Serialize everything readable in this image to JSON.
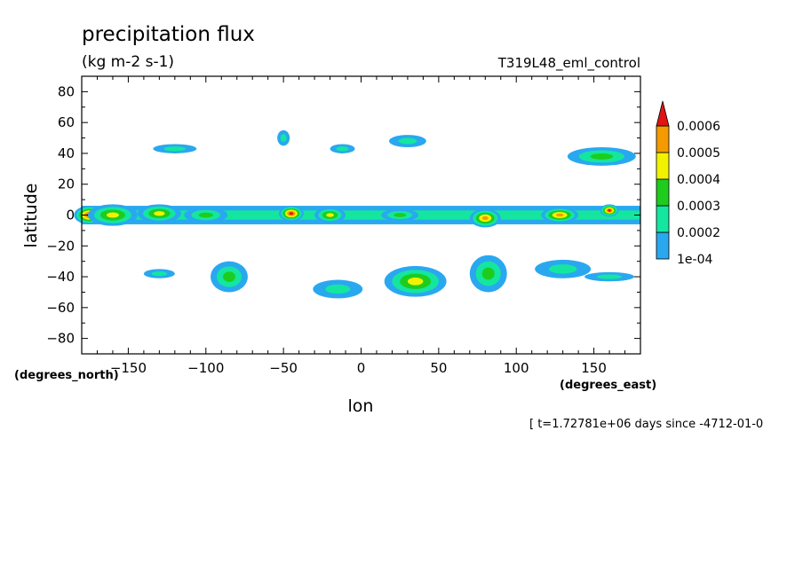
{
  "chart_data": {
    "type": "heatmap",
    "title": "precipitation flux",
    "subtitle": "(kg m-2 s-1)",
    "dataset_label": "T319L48_eml_control",
    "xlabel": "lon",
    "ylabel": "latitude",
    "x_units": "(degrees_east)",
    "y_units": "(degrees_north)",
    "xlim": [
      -180,
      180
    ],
    "ylim": [
      -90,
      90
    ],
    "x_ticks": [
      -150,
      -100,
      -50,
      0,
      50,
      100,
      150
    ],
    "y_ticks": [
      80,
      60,
      40,
      20,
      0,
      -20,
      -40,
      -60,
      -80
    ],
    "time_note": "[ t=1.72781e+06 days since -4712-01-0",
    "colorbar": {
      "labels": [
        "0.0006",
        "0.0005",
        "0.0004",
        "0.0003",
        "0.0002",
        "1e-04"
      ],
      "levels": [
        0.0001,
        0.0002,
        0.0003,
        0.0004,
        0.0005,
        0.0006
      ],
      "colors": [
        "#29a8f0",
        "#14e6a0",
        "#1ecc1e",
        "#f2f200",
        "#f59a00",
        "#e01414"
      ]
    },
    "features": [
      {
        "lon": -175,
        "lat": 0,
        "w": 10,
        "h": 6,
        "level": 5
      },
      {
        "lon": -160,
        "lat": 0,
        "w": 16,
        "h": 7,
        "level": 3
      },
      {
        "lon": -130,
        "lat": 1,
        "w": 14,
        "h": 6,
        "level": 3
      },
      {
        "lon": -100,
        "lat": 0,
        "w": 14,
        "h": 5,
        "level": 2
      },
      {
        "lon": -45,
        "lat": 1,
        "w": 8,
        "h": 5,
        "level": 5
      },
      {
        "lon": -20,
        "lat": 0,
        "w": 10,
        "h": 5,
        "level": 3
      },
      {
        "lon": 25,
        "lat": 0,
        "w": 12,
        "h": 4,
        "level": 2
      },
      {
        "lon": 80,
        "lat": -2,
        "w": 10,
        "h": 6,
        "level": 4
      },
      {
        "lon": 128,
        "lat": 0,
        "w": 12,
        "h": 5,
        "level": 4
      },
      {
        "lon": 160,
        "lat": 3,
        "w": 6,
        "h": 4,
        "level": 5
      },
      {
        "lon": -120,
        "lat": 43,
        "w": 14,
        "h": 3,
        "level": 1
      },
      {
        "lon": -50,
        "lat": 50,
        "w": 4,
        "h": 5,
        "level": 1
      },
      {
        "lon": -12,
        "lat": 43,
        "w": 8,
        "h": 3,
        "level": 1
      },
      {
        "lon": 30,
        "lat": 48,
        "w": 12,
        "h": 4,
        "level": 1
      },
      {
        "lon": 155,
        "lat": 38,
        "w": 22,
        "h": 6,
        "level": 2
      },
      {
        "lon": -85,
        "lat": -40,
        "w": 12,
        "h": 10,
        "level": 2
      },
      {
        "lon": -15,
        "lat": -48,
        "w": 16,
        "h": 6,
        "level": 1
      },
      {
        "lon": 35,
        "lat": -43,
        "w": 20,
        "h": 10,
        "level": 3
      },
      {
        "lon": 82,
        "lat": -38,
        "w": 12,
        "h": 12,
        "level": 2
      },
      {
        "lon": 130,
        "lat": -35,
        "w": 18,
        "h": 6,
        "level": 1
      },
      {
        "lon": -130,
        "lat": -38,
        "w": 10,
        "h": 3,
        "level": 1
      },
      {
        "lon": 160,
        "lat": -40,
        "w": 16,
        "h": 3,
        "level": 1
      }
    ]
  }
}
